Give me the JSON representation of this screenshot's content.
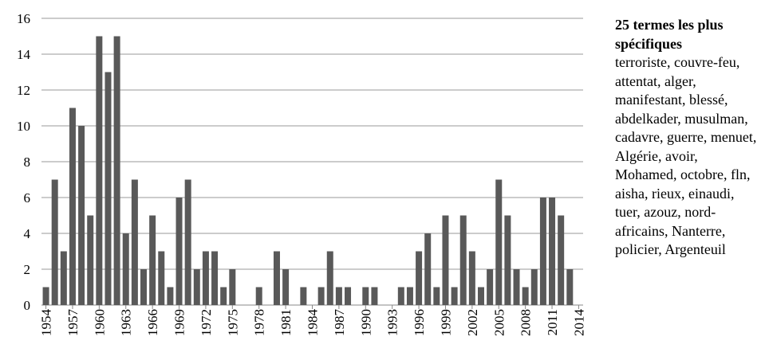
{
  "chart_data": {
    "type": "bar",
    "categories": [
      "1954",
      null,
      null,
      "1957",
      null,
      null,
      "1960",
      null,
      null,
      "1963",
      null,
      null,
      "1966",
      null,
      null,
      "1969",
      null,
      null,
      "1972",
      null,
      null,
      "1975",
      null,
      null,
      "1978",
      null,
      null,
      "1981",
      null,
      null,
      "1984",
      null,
      null,
      "1987",
      null,
      null,
      "1990",
      null,
      null,
      "1993",
      null,
      null,
      "1996",
      null,
      null,
      "1999",
      null,
      null,
      "2002",
      null,
      null,
      "2005",
      null,
      null,
      "2008",
      null,
      null,
      "2011",
      null,
      null,
      "2014"
    ],
    "values": [
      1,
      7,
      3,
      11,
      10,
      5,
      15,
      13,
      15,
      4,
      7,
      2,
      5,
      3,
      1,
      6,
      7,
      2,
      3,
      3,
      1,
      2,
      0,
      0,
      1,
      0,
      3,
      2,
      0,
      1,
      0,
      1,
      3,
      1,
      1,
      0,
      1,
      1,
      0,
      0,
      1,
      1,
      3,
      4,
      1,
      5,
      1,
      5,
      3,
      1,
      2,
      7,
      5,
      2,
      1,
      2,
      6,
      6,
      5,
      2,
      0
    ],
    "color": "#595959",
    "ylim": [
      0,
      16
    ],
    "yticks": [
      0,
      2,
      4,
      6,
      8,
      10,
      12,
      14,
      16
    ],
    "grid": true,
    "annotation": {
      "title": "25 termes les plus spécifiques",
      "text": "terroriste, couvre-feu, attentat, alger, manifestant, blessé, abdelkader, musulman, cadavre, guerre, menuet, Algérie, avoir, Mohamed, octobre, fln, aisha, rieux, einaudi, tuer, azouz, nord-africains, Nanterre, policier, Argenteuil"
    }
  }
}
